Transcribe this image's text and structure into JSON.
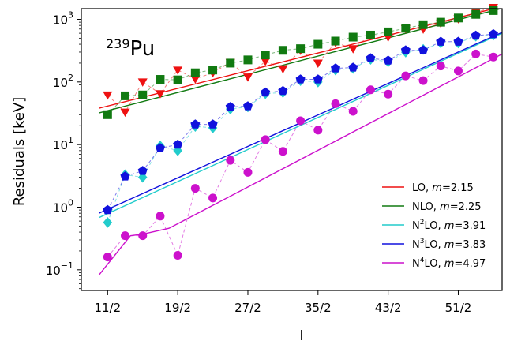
{
  "chart_data": {
    "type": "scatter",
    "xlabel": "I",
    "ylabel": "Residuals [keV]",
    "annotation": {
      "sup": "239",
      "text": "Pu"
    },
    "xlim": [
      4,
      28
    ],
    "x_ticks": [
      5.5,
      9.5,
      13.5,
      17.5,
      21.5,
      25.5
    ],
    "x_tick_labels": [
      "11/2",
      "19/2",
      "27/2",
      "35/2",
      "43/2",
      "51/2"
    ],
    "ylim_log10": [
      -1.33,
      3.17
    ],
    "y_scale": "log",
    "y_ticks": [
      {
        "exp": -1,
        "base": "10",
        "sup": "−1"
      },
      {
        "exp": 0,
        "base": "10",
        "sup": "0"
      },
      {
        "exp": 1,
        "base": "10",
        "sup": "1"
      },
      {
        "exp": 2,
        "base": "10",
        "sup": "2"
      },
      {
        "exp": 3,
        "base": "10",
        "sup": "3"
      }
    ],
    "legend_position": "lower-right",
    "x": [
      5.5,
      6.5,
      7.5,
      8.5,
      9.5,
      10.5,
      11.5,
      12.5,
      13.5,
      14.5,
      15.5,
      16.5,
      17.5,
      18.5,
      19.5,
      20.5,
      21.5,
      22.5,
      23.5,
      24.5,
      25.5,
      26.5,
      27.5
    ],
    "series": [
      {
        "name_parts": [
          "LO, ",
          "m",
          "=2.15"
        ],
        "color": "#ee1111",
        "marker": "triangle-down",
        "values": [
          62,
          33,
          100,
          65,
          155,
          112,
          140,
          205,
          120,
          215,
          162,
          320,
          200,
          425,
          340,
          560,
          520,
          710,
          700,
          870,
          1020,
          1300,
          1550
        ],
        "fit": [
          [
            5,
            38
          ],
          [
            28,
            1600
          ]
        ]
      },
      {
        "name_parts": [
          "NLO, ",
          "m",
          "=2.25"
        ],
        "color": "#117a11",
        "marker": "square",
        "values": [
          30,
          60,
          62,
          110,
          108,
          140,
          155,
          200,
          225,
          270,
          320,
          340,
          400,
          450,
          520,
          560,
          630,
          720,
          820,
          900,
          1050,
          1200,
          1380
        ],
        "fit": [
          [
            5,
            32
          ],
          [
            28,
            1500
          ]
        ]
      },
      {
        "name_parts": [
          "N",
          "2",
          "LO, ",
          "m",
          "=3.91"
        ],
        "color": "#22cccc",
        "marker": "diamond",
        "values": [
          0.57,
          3.3,
          3.0,
          9.5,
          8.0,
          19.5,
          18.5,
          37,
          40,
          65,
          68,
          105,
          100,
          155,
          165,
          230,
          210,
          300,
          330,
          420,
          420,
          540,
          560
        ],
        "fit": [
          [
            5,
            0.68
          ],
          [
            28,
            600
          ]
        ]
      },
      {
        "name_parts": [
          "N",
          "3",
          "LO, ",
          "m",
          "=3.83"
        ],
        "color": "#1111dd",
        "marker": "pentagon",
        "values": [
          0.9,
          3.1,
          3.8,
          8.8,
          10,
          21,
          21,
          40,
          41,
          68,
          72,
          110,
          110,
          165,
          170,
          240,
          220,
          320,
          320,
          440,
          440,
          550,
          580
        ],
        "fit": [
          [
            5,
            0.8
          ],
          [
            28,
            620
          ]
        ]
      },
      {
        "name_parts": [
          "N",
          "4",
          "LO, ",
          "m",
          "=4.97"
        ],
        "color": "#cc11cc",
        "marker": "circle",
        "values": [
          0.16,
          0.35,
          0.35,
          0.72,
          0.17,
          2.0,
          1.4,
          5.6,
          3.6,
          12,
          7.8,
          24,
          17,
          45,
          34,
          75,
          64,
          125,
          105,
          180,
          150,
          280,
          250
        ],
        "fit": [
          [
            5,
            0.082
          ],
          [
            6.8,
            0.35
          ],
          [
            7.5,
            0.37
          ],
          [
            9,
            0.46
          ],
          [
            28,
            280
          ]
        ]
      }
    ]
  }
}
